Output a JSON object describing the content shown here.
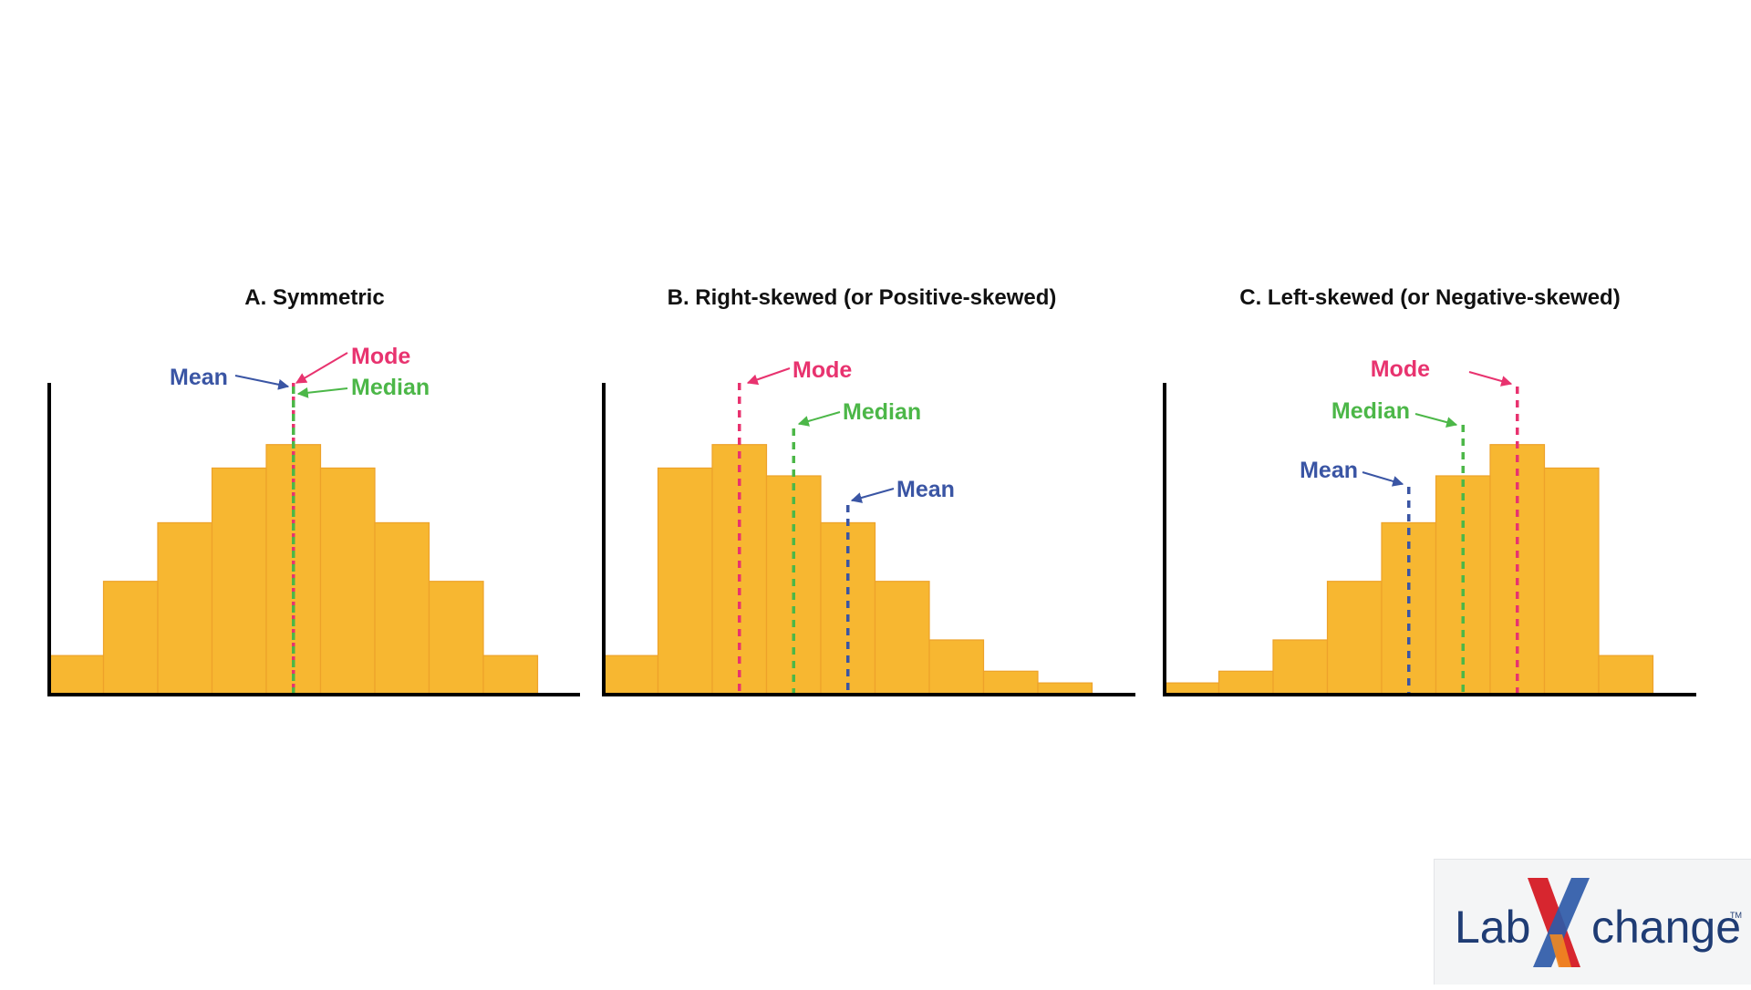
{
  "chart_data": [
    {
      "type": "bar",
      "title": "A. Symmetric",
      "xlabel": "",
      "ylabel": "",
      "values": [
        10,
        29,
        44,
        58,
        64,
        58,
        44,
        29,
        10
      ],
      "ylim": [
        0,
        70
      ],
      "bar_color": "#f7b731",
      "markers": [
        {
          "name": "Mean",
          "color": "#3a55a4",
          "bin": 4.5
        },
        {
          "name": "Mode",
          "color": "#e8336f",
          "bin": 4.5
        },
        {
          "name": "Median",
          "color": "#4cb748",
          "bin": 4.5
        }
      ]
    },
    {
      "type": "bar",
      "title": "B. Right-skewed (or Positive-skewed)",
      "xlabel": "",
      "ylabel": "",
      "values": [
        10,
        58,
        64,
        56,
        44,
        29,
        14,
        6,
        3
      ],
      "ylim": [
        0,
        70
      ],
      "bar_color": "#f7b731",
      "markers": [
        {
          "name": "Mode",
          "color": "#e8336f",
          "bin": 2.5
        },
        {
          "name": "Median",
          "color": "#4cb748",
          "bin": 3.5
        },
        {
          "name": "Mean",
          "color": "#3a55a4",
          "bin": 4.5
        }
      ]
    },
    {
      "type": "bar",
      "title": "C. Left-skewed (or Negative-skewed)",
      "xlabel": "",
      "ylabel": "",
      "values": [
        3,
        6,
        14,
        29,
        44,
        56,
        64,
        58,
        10
      ],
      "ylim": [
        0,
        70
      ],
      "bar_color": "#f7b731",
      "markers": [
        {
          "name": "Mode",
          "color": "#e8336f",
          "bin": 6.5
        },
        {
          "name": "Median",
          "color": "#4cb748",
          "bin": 5.5
        },
        {
          "name": "Mean",
          "color": "#3a55a4",
          "bin": 4.5
        }
      ]
    }
  ],
  "logo": {
    "text_left": "Lab",
    "text_right": "change",
    "trademark": "TM",
    "colors": {
      "text": "#1f3c74",
      "x_red": "#d7262f",
      "x_blue": "#2e5aa8",
      "x_orange": "#f18a21"
    }
  }
}
